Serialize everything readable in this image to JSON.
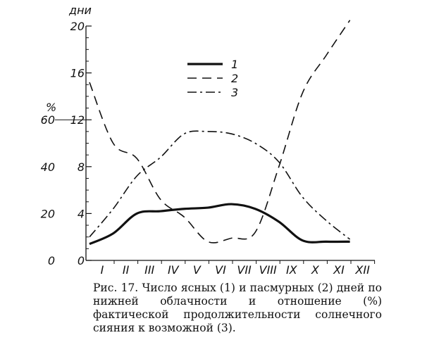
{
  "chart_data": {
    "type": "line",
    "categories": [
      "I",
      "II",
      "III",
      "IV",
      "V",
      "VI",
      "VII",
      "VIII",
      "IX",
      "X",
      "XI",
      "XII"
    ],
    "left_axis_days": {
      "label": "дни",
      "ticks": [
        "0",
        "4",
        "8",
        "12",
        "16",
        "20"
      ],
      "range": [
        0,
        20
      ]
    },
    "left_axis_percent": {
      "label": "%",
      "ticks": [
        "0",
        "20",
        "40",
        "60"
      ],
      "range": [
        0,
        60
      ]
    },
    "series": [
      {
        "name": "1",
        "style": "solid",
        "axis": "days",
        "values": [
          1.4,
          2.3,
          4.0,
          4.2,
          4.4,
          4.5,
          4.8,
          4.4,
          3.3,
          1.7,
          1.6,
          1.6
        ]
      },
      {
        "name": "2",
        "style": "dashed",
        "axis": "days",
        "values": [
          15.2,
          10.0,
          8.7,
          5.2,
          3.7,
          1.6,
          1.9,
          2.4,
          8.0,
          14.3,
          17.5,
          20.5
        ]
      },
      {
        "name": "3",
        "style": "dash-dot",
        "axis": "percent",
        "values": [
          10,
          22,
          36,
          44,
          54,
          55,
          54,
          50,
          42,
          27,
          17,
          9
        ]
      }
    ],
    "grid": false,
    "legend_position": "top-center"
  },
  "caption": {
    "prefix": "Рис. 17.",
    "text": "Число ясных (1) и пасмурных (2) дней по нижней облачности и отношение (%) фактической продолжительности солнечного сияния к возможной (3)."
  }
}
